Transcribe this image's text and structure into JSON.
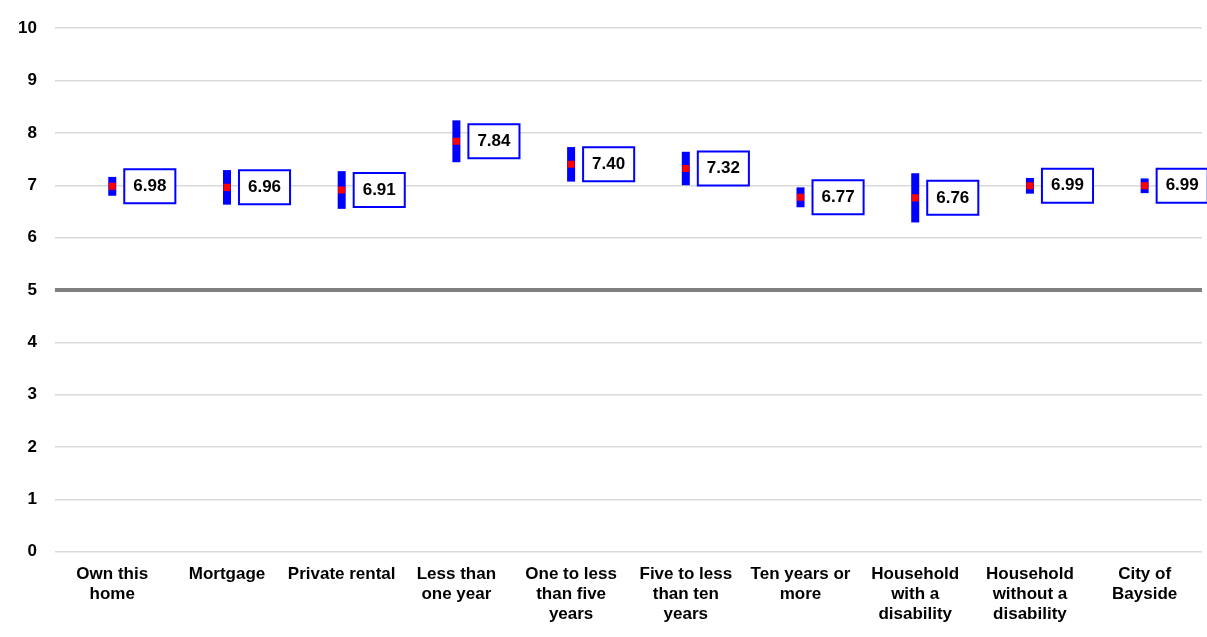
{
  "chart_data": {
    "type": "scatter",
    "categories": [
      "Own this home",
      "Mortgage",
      "Private rental",
      "Less than one year",
      "One to less than five years",
      "Five to less than ten years",
      "Ten years or more",
      "Household with a disability",
      "Household without a disability",
      "City of Bayside"
    ],
    "series": [
      {
        "color": "#ff0000",
        "values": [
          6.98,
          6.96,
          6.91,
          7.84,
          7.4,
          7.32,
          6.77,
          6.76,
          6.99,
          6.99
        ],
        "errors": [
          0.18,
          0.33,
          0.36,
          0.4,
          0.33,
          0.32,
          0.19,
          0.47,
          0.15,
          0.14
        ],
        "value_labels": [
          "6.98",
          "6.96",
          "6.91",
          "7.84",
          "7.40",
          "7.32",
          "6.77",
          "6.76",
          "6.99",
          "6.99"
        ]
      }
    ],
    "ylim": [
      0,
      10
    ],
    "yticks": [
      0,
      1,
      2,
      3,
      4,
      5,
      6,
      7,
      8,
      9,
      10
    ],
    "grid": "y",
    "marker": "square",
    "legend": false,
    "ref_lines": [
      {
        "axis": "y",
        "value": 5,
        "color": "#808080"
      }
    ]
  }
}
